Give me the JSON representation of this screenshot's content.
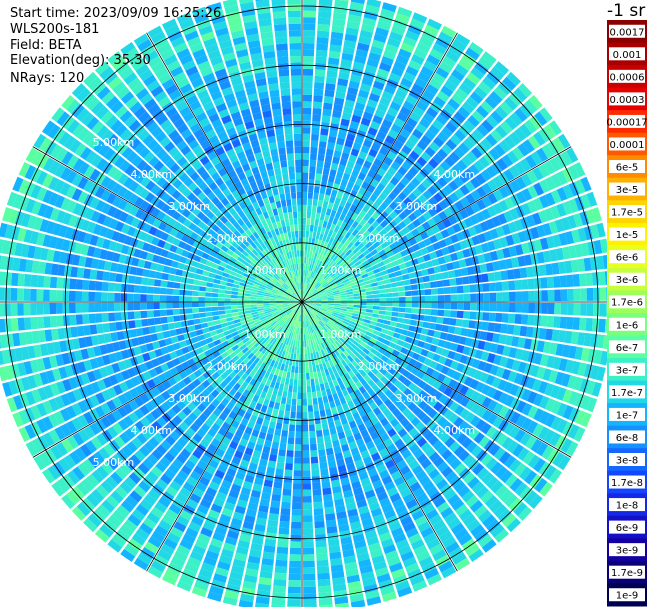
{
  "header": {
    "start_time": "Start time: 2023/09/09 16:25:26",
    "instrument": "WLS200s-181",
    "field": "Field: BETA",
    "elevation": "Elevation(deg): 35.30",
    "nrays": "NRays: 120"
  },
  "colorbar": {
    "unit_label": "-1 sr",
    "ticks": [
      "0.0017",
      "0.001",
      "0.0006",
      "0.0003",
      "0.00017",
      "0.0001",
      "6e-5",
      "3e-5",
      "1.7e-5",
      "1e-5",
      "6e-6",
      "3e-6",
      "1.7e-6",
      "1e-6",
      "6e-7",
      "3e-7",
      "1.7e-7",
      "1e-7",
      "6e-8",
      "3e-8",
      "1.7e-8",
      "1e-8",
      "6e-9",
      "3e-9",
      "1.7e-9",
      "1e-9"
    ],
    "colors": [
      "#8b0000",
      "#a80000",
      "#c80000",
      "#e60000",
      "#ff2a00",
      "#ff5a00",
      "#ff8c00",
      "#ffb000",
      "#ffd400",
      "#fff200",
      "#e8ff20",
      "#c8ff3c",
      "#9eff5a",
      "#78ff7e",
      "#5affa2",
      "#3cf0c8",
      "#22d8e6",
      "#14b4ff",
      "#1490ff",
      "#1468ff",
      "#1446ff",
      "#1428e6",
      "#1410c8",
      "#1400a0",
      "#0a0078",
      "#000050"
    ]
  },
  "chart_data": {
    "type": "heatmap",
    "projection": "polar (plan position indicator)",
    "field": "BETA",
    "nrays": 120,
    "range_rings_km": [
      1,
      2,
      3,
      4,
      5
    ],
    "ring_labels": [
      "1.00km",
      "2.00km",
      "3.00km",
      "4.00km",
      "5.00km"
    ],
    "max_range_km": 5.25,
    "radial_profile": [
      {
        "range_km": 0.0,
        "beta": 5e-07
      },
      {
        "range_km": 1.0,
        "beta": 3e-07
      },
      {
        "range_km": 2.0,
        "beta": 1.2e-07
      },
      {
        "range_km": 3.0,
        "beta": 9e-08
      },
      {
        "range_km": 4.0,
        "beta": 1.3e-07
      },
      {
        "range_km": 5.0,
        "beta": 2.5e-07
      }
    ],
    "color_scale": "log",
    "vmin": 1e-09,
    "vmax": 0.0017
  }
}
